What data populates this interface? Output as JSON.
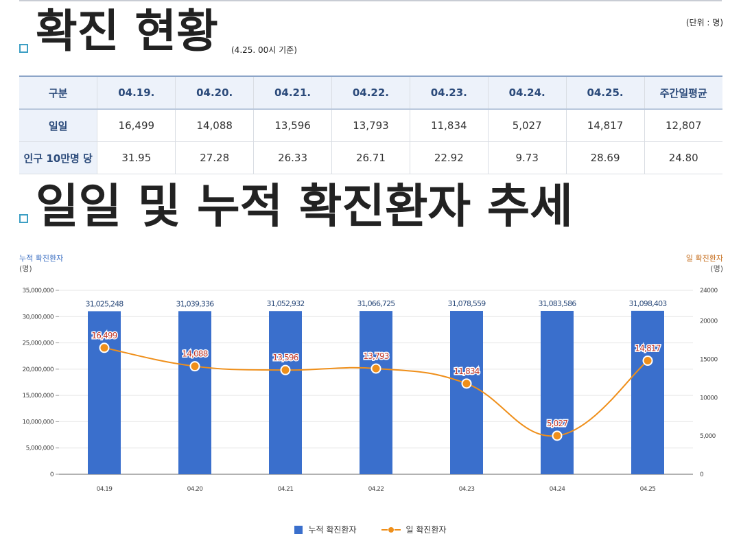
{
  "section1": {
    "title": "확진 현황",
    "basis": "(4.25. 00시 기준)",
    "unit": "(단위 : 명)"
  },
  "table": {
    "headers": [
      "구분",
      "04.19.",
      "04.20.",
      "04.21.",
      "04.22.",
      "04.23.",
      "04.24.",
      "04.25.",
      "주간일평균"
    ],
    "rows": [
      {
        "label": "일일",
        "values": [
          "16,499",
          "14,088",
          "13,596",
          "13,793",
          "11,834",
          "5,027",
          "14,817",
          "12,807"
        ]
      },
      {
        "label": "인구 10만명 당",
        "values": [
          "31.95",
          "27.28",
          "26.33",
          "26.71",
          "22.92",
          "9.73",
          "28.69",
          "24.80"
        ]
      }
    ]
  },
  "section2": {
    "title": "일일 및 누적 확진환자 추세"
  },
  "axes": {
    "left_title": "누적 확진환자",
    "left_unit": "(명)",
    "right_title": "일 확진환자",
    "right_unit": "(명)"
  },
  "colors": {
    "bar": "#3a6fcc",
    "line": "#ef8f1a",
    "accent": "#3d9fc4"
  },
  "legend": {
    "bar_label": "누적 확진환자",
    "line_label": "일 확진환자"
  },
  "chart_data": {
    "type": "bar",
    "categories": [
      "04.19",
      "04.20",
      "04.21",
      "04.22",
      "04.23",
      "04.24",
      "04.25"
    ],
    "series": [
      {
        "name": "누적 확진환자",
        "type": "bar",
        "axis": "left",
        "values": [
          31025248,
          31039336,
          31052932,
          31066725,
          31078559,
          31083586,
          31098403
        ],
        "labels": [
          "31,025,248",
          "31,039,336",
          "31,052,932",
          "31,066,725",
          "31,078,559",
          "31,083,586",
          "31,098,403"
        ]
      },
      {
        "name": "일 확진환자",
        "type": "line",
        "axis": "right",
        "values": [
          16499,
          14088,
          13596,
          13793,
          11834,
          5027,
          14817
        ],
        "labels": [
          "16,499",
          "14,088",
          "13,596",
          "13,793",
          "11,834",
          "5,027",
          "14,817"
        ]
      }
    ],
    "y_left": {
      "min": 0,
      "max": 35000000,
      "ticks": [
        0,
        5000000,
        10000000,
        15000000,
        20000000,
        25000000,
        30000000,
        35000000
      ],
      "tick_labels": [
        "0",
        "5,000,000",
        "10,000,000",
        "15,000,000",
        "20,000,000",
        "25,000,000",
        "30,000,000",
        "35,000,000"
      ]
    },
    "y_right": {
      "min": 0,
      "max": 24000,
      "ticks": [
        0,
        5000,
        10000,
        15000,
        20000,
        24000
      ],
      "tick_labels": [
        "0",
        "5,000",
        "10000",
        "15000",
        "20000",
        "24000"
      ]
    },
    "grid": true,
    "legend_position": "bottom"
  }
}
